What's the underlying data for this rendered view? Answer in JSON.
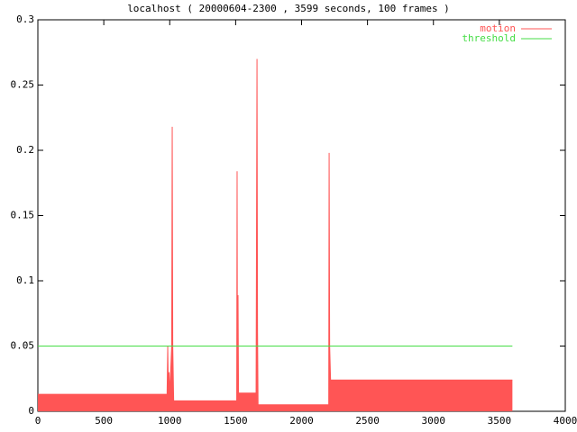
{
  "chart_data": {
    "type": "line",
    "title": "localhost ( 20000604-2300 , 3599 seconds, 100 frames )",
    "xlim": [
      0,
      4000
    ],
    "xticks": [
      0,
      500,
      1000,
      1500,
      2000,
      2500,
      3000,
      3500,
      4000
    ],
    "ylim": [
      0,
      0.3
    ],
    "yticks": [
      0,
      0.05,
      0.1,
      0.15,
      0.2,
      0.25,
      0.3
    ],
    "legend": "top-right",
    "series": [
      {
        "name": "motion",
        "color": "#ff5555",
        "fill": true,
        "x": [
          0,
          980,
          985,
          990,
          995,
          1000,
          1015,
          1019,
          1023,
          1030,
          1500,
          1508,
          1511,
          1514,
          1518,
          1522,
          1655,
          1662,
          1666,
          1670,
          2200,
          2206,
          2209,
          2213,
          2220,
          3599
        ],
        "values": [
          0.013,
          0.013,
          0.05,
          0.013,
          0.03,
          0.013,
          0.05,
          0.218,
          0.05,
          0.008,
          0.008,
          0.008,
          0.184,
          0.008,
          0.089,
          0.014,
          0.014,
          0.27,
          0.062,
          0.005,
          0.005,
          0.005,
          0.198,
          0.05,
          0.024,
          0.024
        ]
      },
      {
        "name": "threshold",
        "color": "#44dd44",
        "fill": false,
        "x": [
          0,
          3599
        ],
        "values": [
          0.05,
          0.05
        ]
      }
    ]
  }
}
